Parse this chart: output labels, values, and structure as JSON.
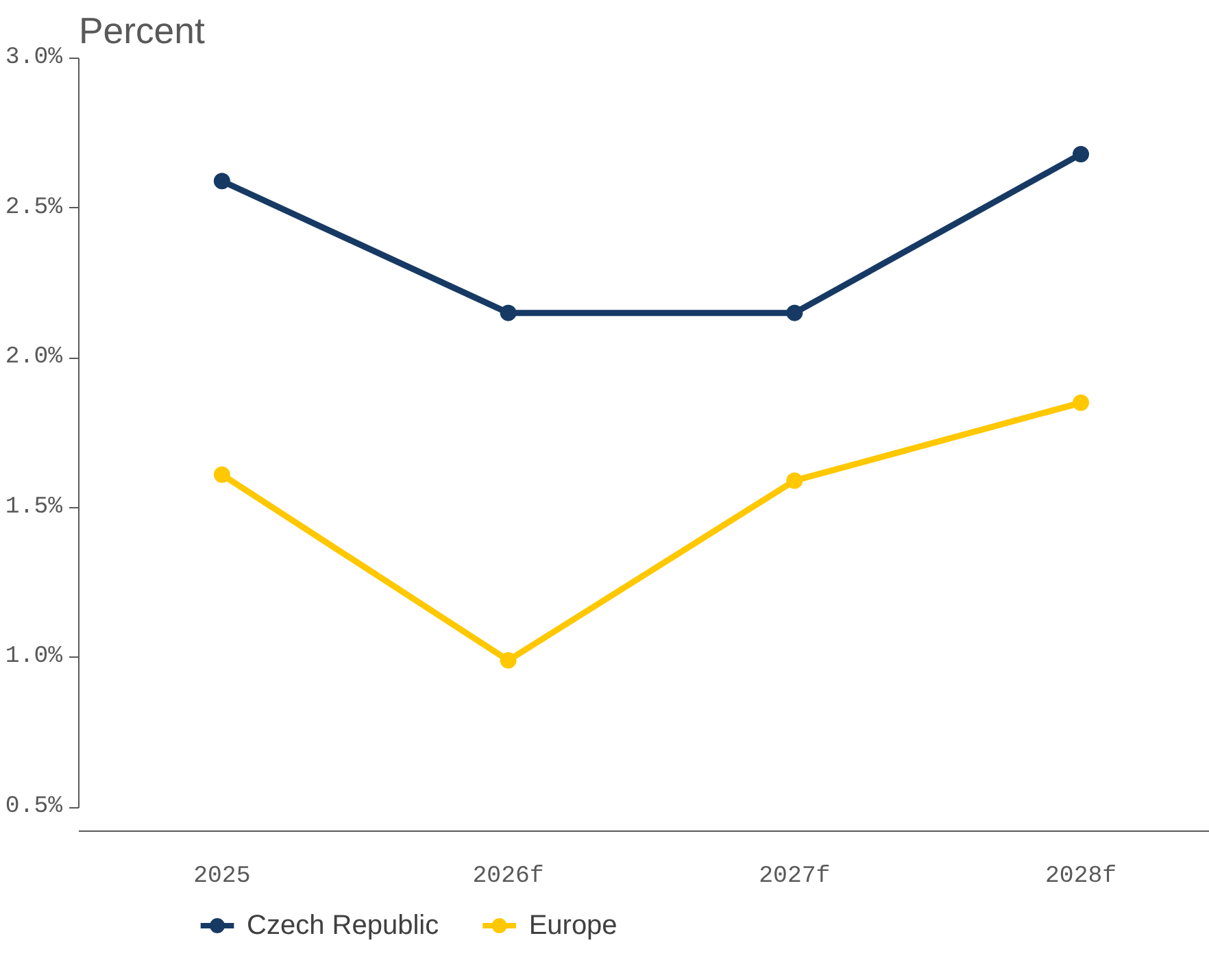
{
  "chart_data": {
    "type": "line",
    "subtitle": "Percent",
    "categories": [
      "2025",
      "2026f",
      "2027f",
      "2028f"
    ],
    "series": [
      {
        "name": "Czech Republic",
        "color": "#173a64",
        "values": [
          2.59,
          2.15,
          2.15,
          2.68
        ]
      },
      {
        "name": "Europe",
        "color": "#ffc800",
        "values": [
          1.61,
          0.99,
          1.59,
          1.85
        ]
      }
    ],
    "ylim": [
      0.42,
      3.0
    ],
    "yticks": [
      {
        "value": 0.5,
        "label": "0.5%"
      },
      {
        "value": 1.0,
        "label": "1.0%"
      },
      {
        "value": 1.5,
        "label": "1.5%"
      },
      {
        "value": 2.0,
        "label": "2.0%"
      },
      {
        "value": 2.5,
        "label": "2.5%"
      },
      {
        "value": 3.0,
        "label": "3.0%"
      }
    ],
    "grid": false,
    "legend": "bottom left",
    "marker": "circle",
    "line_style": "solid"
  }
}
